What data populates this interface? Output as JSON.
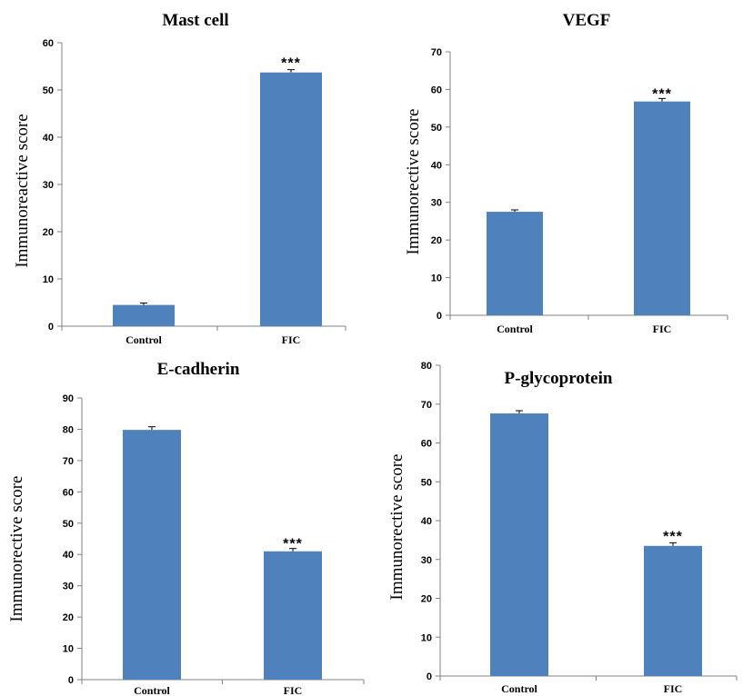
{
  "chart_data": [
    {
      "type": "bar",
      "title": "Mast cell",
      "ylabel": "Immunoreactive score",
      "xlabel": "",
      "categories": [
        "Control",
        "FIC"
      ],
      "values": [
        4.5,
        53.7
      ],
      "errors": [
        0.4,
        0.6
      ],
      "significance": [
        "",
        "***"
      ],
      "ylim": [
        0,
        60
      ],
      "yticks": [
        0,
        10,
        20,
        30,
        40,
        50,
        60
      ],
      "bar_color": "#4f81bd",
      "grid": false
    },
    {
      "type": "bar",
      "title": "VEGF",
      "ylabel": "Immunorective score",
      "xlabel": "",
      "categories": [
        "Control",
        "FIC"
      ],
      "values": [
        27.5,
        56.8
      ],
      "errors": [
        0.5,
        0.8
      ],
      "significance": [
        "",
        "***"
      ],
      "ylim": [
        0,
        70
      ],
      "yticks": [
        0,
        10,
        20,
        30,
        40,
        50,
        60,
        70
      ],
      "bar_color": "#4f81bd",
      "grid": false
    },
    {
      "type": "bar",
      "title": "E-cadherin",
      "ylabel": "Immunorective score",
      "xlabel": "",
      "categories": [
        "Control",
        "FIC"
      ],
      "values": [
        79.8,
        41.0
      ],
      "errors": [
        1.0,
        0.9
      ],
      "significance": [
        "",
        "***"
      ],
      "ylim": [
        0,
        90
      ],
      "yticks": [
        0,
        10,
        20,
        30,
        40,
        50,
        60,
        70,
        80,
        90
      ],
      "bar_color": "#4f81bd",
      "grid": false
    },
    {
      "type": "bar",
      "title": "P-glycoprotein",
      "ylabel": "Immunorective score",
      "xlabel": "",
      "categories": [
        "Control",
        "FIC"
      ],
      "values": [
        67.6,
        33.5
      ],
      "errors": [
        0.7,
        0.8
      ],
      "significance": [
        "",
        "***"
      ],
      "ylim": [
        0,
        80
      ],
      "yticks": [
        0,
        10,
        20,
        30,
        40,
        50,
        60,
        70,
        80
      ],
      "bar_color": "#4f81bd",
      "grid": false
    }
  ]
}
